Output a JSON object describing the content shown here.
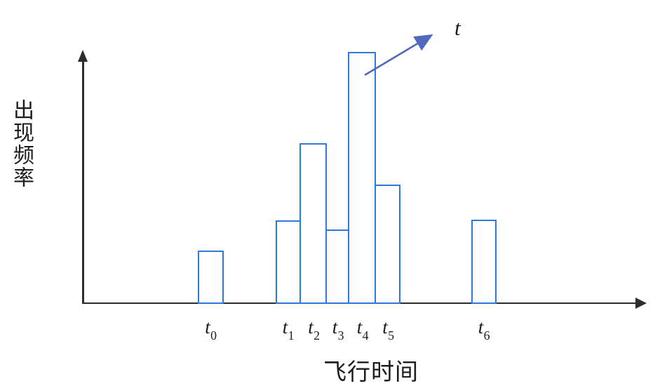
{
  "chart_data": {
    "type": "histogram",
    "title": "",
    "xlabel": "飞行时间",
    "ylabel": "出现频率",
    "categories": [
      {
        "base": "t",
        "sub": "0"
      },
      {
        "base": "t",
        "sub": "1"
      },
      {
        "base": "t",
        "sub": "2"
      },
      {
        "base": "t",
        "sub": "3"
      },
      {
        "base": "t",
        "sub": "4"
      },
      {
        "base": "t",
        "sub": "5"
      },
      {
        "base": "t",
        "sub": "6"
      }
    ],
    "values": [
      0.212,
      0.331,
      0.638,
      0.295,
      1.0,
      0.473,
      0.334
    ],
    "values_note": "relative bar heights; no numeric y scale is shown in the figure",
    "ylim": [
      0,
      1
    ],
    "grid": false,
    "legend": false,
    "annotation": {
      "label": "t",
      "points_to_category_index": 4
    },
    "colors": {
      "bar_stroke": "#2e78e0",
      "bar_fill": "#ffffff",
      "annotation_arrow": "#5068be",
      "axis": "#2d2d2d",
      "text": "#1c1c1c"
    }
  }
}
